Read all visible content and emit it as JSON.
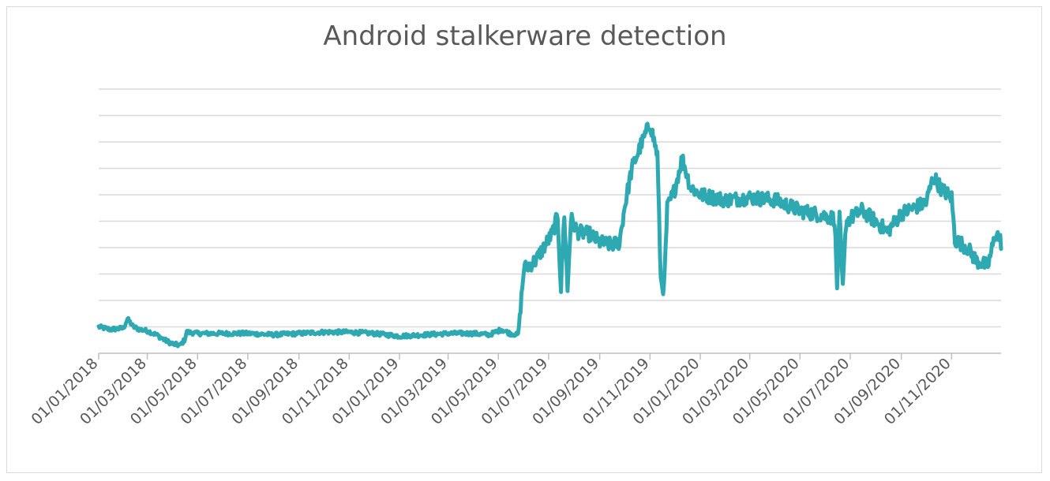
{
  "chart_data": {
    "type": "line",
    "title": "Android stalkerware detection",
    "xlabel": "",
    "ylabel": "",
    "x_tick_labels": [
      "01/01/2018",
      "01/03/2018",
      "01/05/2018",
      "01/07/2018",
      "01/09/2018",
      "01/11/2018",
      "01/01/2019",
      "01/03/2019",
      "01/05/2019",
      "01/07/2019",
      "01/09/2019",
      "01/11/2019",
      "01/01/2020",
      "01/03/2020",
      "01/05/2020",
      "01/07/2020",
      "01/09/2020",
      "01/11/2020"
    ],
    "x_range": [
      "2018-01-01",
      "2020-12-31"
    ],
    "y_range": [
      0,
      10
    ],
    "y_tick_labels_visible": false,
    "grid": true,
    "legend": "none",
    "color": "#2ea8b1",
    "series": [
      {
        "points": [
          [
            "2018-01-01",
            1.0
          ],
          [
            "2018-01-15",
            0.9
          ],
          [
            "2018-01-31",
            0.95
          ],
          [
            "2018-02-05",
            1.3
          ],
          [
            "2018-02-12",
            1.0
          ],
          [
            "2018-02-20",
            0.9
          ],
          [
            "2018-03-01",
            0.85
          ],
          [
            "2018-03-12",
            0.7
          ],
          [
            "2018-03-22",
            0.5
          ],
          [
            "2018-04-01",
            0.35
          ],
          [
            "2018-04-10",
            0.3
          ],
          [
            "2018-04-15",
            0.5
          ],
          [
            "2018-04-18",
            0.8
          ],
          [
            "2018-05-01",
            0.75
          ],
          [
            "2018-06-01",
            0.75
          ],
          [
            "2018-07-01",
            0.75
          ],
          [
            "2018-08-01",
            0.7
          ],
          [
            "2018-09-01",
            0.75
          ],
          [
            "2018-10-01",
            0.8
          ],
          [
            "2018-11-01",
            0.8
          ],
          [
            "2018-12-01",
            0.75
          ],
          [
            "2019-01-01",
            0.65
          ],
          [
            "2019-02-01",
            0.7
          ],
          [
            "2019-03-01",
            0.75
          ],
          [
            "2019-04-01",
            0.75
          ],
          [
            "2019-04-20",
            0.7
          ],
          [
            "2019-05-05",
            0.9
          ],
          [
            "2019-05-15",
            0.75
          ],
          [
            "2019-05-25",
            0.7
          ],
          [
            "2019-06-01",
            3.2
          ],
          [
            "2019-06-15",
            3.5
          ],
          [
            "2019-06-25",
            4.0
          ],
          [
            "2019-07-05",
            4.5
          ],
          [
            "2019-07-12",
            5.2
          ],
          [
            "2019-07-16",
            2.4
          ],
          [
            "2019-07-20",
            5.3
          ],
          [
            "2019-07-24",
            2.4
          ],
          [
            "2019-07-28",
            5.1
          ],
          [
            "2019-08-05",
            4.6
          ],
          [
            "2019-08-20",
            4.5
          ],
          [
            "2019-09-01",
            4.2
          ],
          [
            "2019-09-15",
            4.1
          ],
          [
            "2019-09-25",
            4.2
          ],
          [
            "2019-10-01",
            5.5
          ],
          [
            "2019-10-10",
            7.0
          ],
          [
            "2019-10-20",
            7.8
          ],
          [
            "2019-11-01",
            8.7
          ],
          [
            "2019-11-10",
            7.5
          ],
          [
            "2019-11-14",
            2.8
          ],
          [
            "2019-11-18",
            2.4
          ],
          [
            "2019-11-22",
            5.5
          ],
          [
            "2019-12-01",
            6.2
          ],
          [
            "2019-12-10",
            7.4
          ],
          [
            "2019-12-20",
            6.3
          ],
          [
            "2020-01-01",
            6.0
          ],
          [
            "2020-02-01",
            5.8
          ],
          [
            "2020-03-01",
            5.9
          ],
          [
            "2020-04-01",
            5.8
          ],
          [
            "2020-05-01",
            5.4
          ],
          [
            "2020-06-01",
            5.2
          ],
          [
            "2020-06-12",
            5.1
          ],
          [
            "2020-06-15",
            2.5
          ],
          [
            "2020-06-18",
            5.2
          ],
          [
            "2020-06-22",
            2.4
          ],
          [
            "2020-06-26",
            5.0
          ],
          [
            "2020-07-15",
            5.4
          ],
          [
            "2020-08-01",
            5.0
          ],
          [
            "2020-08-15",
            4.6
          ],
          [
            "2020-09-01",
            5.3
          ],
          [
            "2020-10-01",
            5.7
          ],
          [
            "2020-10-10",
            6.7
          ],
          [
            "2020-10-20",
            6.2
          ],
          [
            "2020-11-01",
            5.9
          ],
          [
            "2020-11-05",
            4.3
          ],
          [
            "2020-11-20",
            4.0
          ],
          [
            "2020-12-01",
            3.5
          ],
          [
            "2020-12-15",
            3.3
          ],
          [
            "2020-12-25",
            4.6
          ],
          [
            "2020-12-31",
            4.2
          ]
        ]
      }
    ]
  }
}
